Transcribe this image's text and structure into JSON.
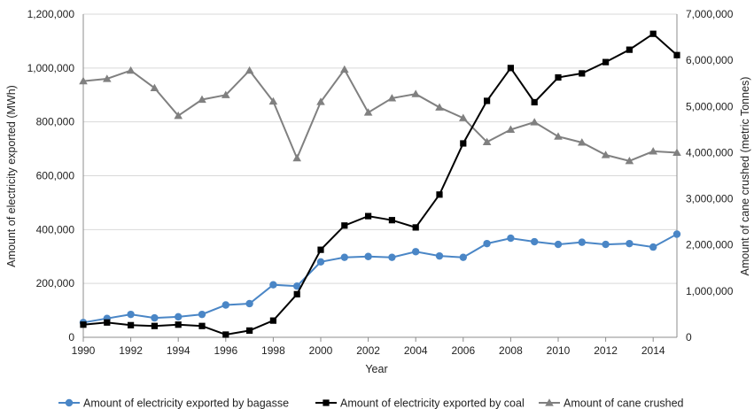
{
  "chart_data": {
    "type": "line",
    "title": "",
    "xlabel": "Year",
    "ylabel_left": "Amount of  electricity exported (MWh)",
    "ylabel_right": "Amount of cane crushed (metric Tonnes)",
    "x": [
      1990,
      1991,
      1992,
      1993,
      1994,
      1995,
      1996,
      1997,
      1998,
      1999,
      2000,
      2001,
      2002,
      2003,
      2004,
      2005,
      2006,
      2007,
      2008,
      2009,
      2010,
      2011,
      2012,
      2013,
      2014,
      2015
    ],
    "xlim": [
      1990,
      2015
    ],
    "x_ticks": [
      "1990",
      "1992",
      "1994",
      "1996",
      "1998",
      "2000",
      "2002",
      "2004",
      "2006",
      "2008",
      "2010",
      "2012",
      "2014"
    ],
    "x_tick_values": [
      1990,
      1992,
      1994,
      1996,
      1998,
      2000,
      2002,
      2004,
      2006,
      2008,
      2010,
      2012,
      2014
    ],
    "ylim_left": [
      0,
      1200000
    ],
    "ylim_right": [
      0,
      7000000
    ],
    "y_ticks_left": [
      "0",
      "200,000",
      "400,000",
      "600,000",
      "800,000",
      "1,000,000",
      "1,200,000"
    ],
    "y_ticks_right": [
      "0",
      "1,000,000",
      "2,000,000",
      "3,000,000",
      "4,000,000",
      "5,000,000",
      "6,000,000",
      "7,000,000"
    ],
    "grid": true,
    "legend_position": "bottom",
    "series": [
      {
        "name": "Amount of electricity exported by bagasse",
        "axis": "left",
        "color": "#4a86c6",
        "marker": "circle",
        "values": [
          55000,
          70000,
          85000,
          72000,
          76000,
          85000,
          120000,
          125000,
          195000,
          190000,
          280000,
          297000,
          300000,
          297000,
          318000,
          302000,
          297000,
          348000,
          368000,
          355000,
          345000,
          353000,
          345000,
          348000,
          335000,
          383000
        ]
      },
      {
        "name": "Amount of electricity exported by coal",
        "axis": "left",
        "color": "#000000",
        "marker": "square",
        "values": [
          47000,
          55000,
          45000,
          42000,
          47000,
          42000,
          10000,
          25000,
          62000,
          160000,
          325000,
          415000,
          450000,
          435000,
          408000,
          530000,
          720000,
          878000,
          1000000,
          873000,
          965000,
          980000,
          1022000,
          1068000,
          1127000,
          1048000
        ]
      },
      {
        "name": "Amount of cane crushed",
        "axis": "right",
        "color": "#808080",
        "marker": "triangle",
        "values": [
          5550000,
          5600000,
          5780000,
          5400000,
          4800000,
          5150000,
          5250000,
          5780000,
          5110000,
          3880000,
          5100000,
          5800000,
          4870000,
          5180000,
          5270000,
          4980000,
          4750000,
          4230000,
          4500000,
          4660000,
          4350000,
          4220000,
          3950000,
          3820000,
          4030000,
          4000000
        ]
      }
    ]
  }
}
